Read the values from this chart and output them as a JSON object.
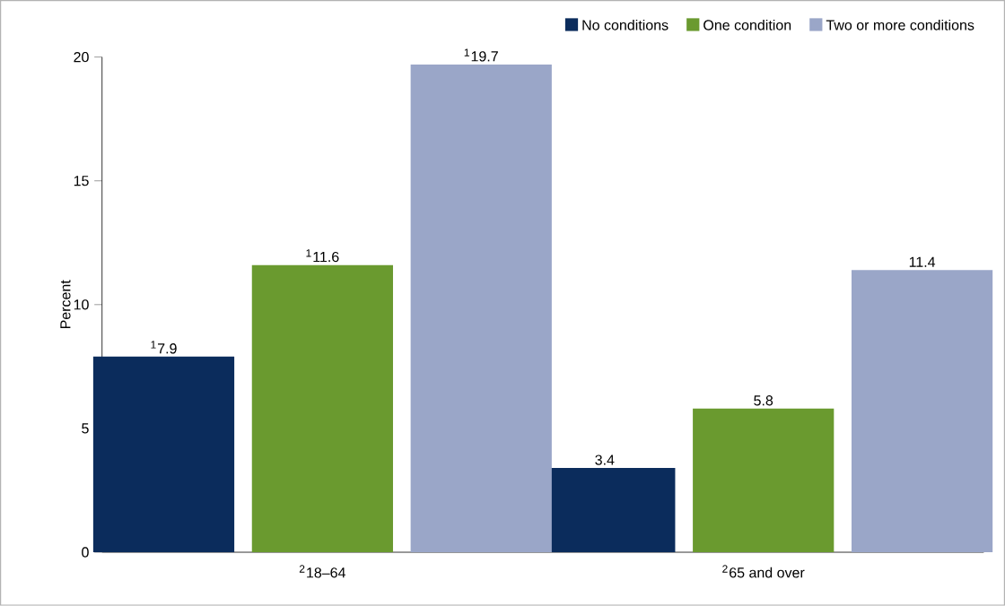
{
  "chart_data": {
    "type": "bar",
    "ylabel": "Percent",
    "categories": [
      "$^{2}$18–64",
      "$^{2}$65 and over"
    ],
    "series": [
      {
        "name": "No conditions",
        "color": "#0b2c5c",
        "values": [
          7.9,
          3.4
        ],
        "value_labels": [
          "$^{1}$7.9",
          "3.4"
        ]
      },
      {
        "name": "One condition",
        "color": "#6a9a2f",
        "values": [
          11.6,
          5.8
        ],
        "value_labels": [
          "$^{1}$11.6",
          "5.8"
        ]
      },
      {
        "name": "Two or more conditions",
        "color": "#9aa6c8",
        "values": [
          19.7,
          11.4
        ],
        "value_labels": [
          "$^{1}$19.7",
          "11.4"
        ]
      }
    ],
    "ylim": [
      0,
      20
    ],
    "yticks": [
      0,
      5,
      10,
      15,
      20
    ],
    "grid": false,
    "legend": "top right"
  }
}
